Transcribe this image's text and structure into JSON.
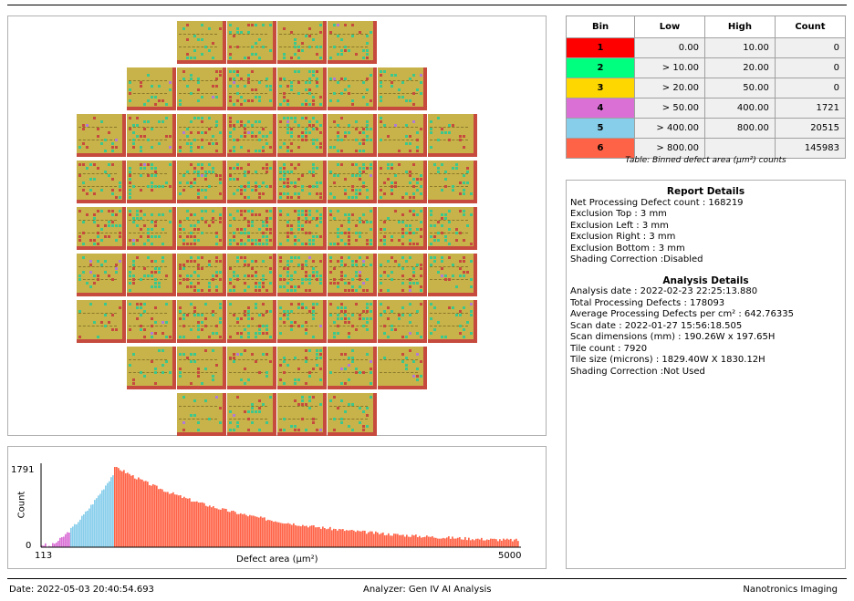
{
  "bin_table": {
    "caption": "Table: Binned defect area (µm²) counts",
    "headers": [
      "Bin",
      "Low",
      "High",
      "Count"
    ],
    "rows": [
      {
        "bin": "1",
        "low": "0.00",
        "high": "10.00",
        "count": "0",
        "color": "#ff0000"
      },
      {
        "bin": "2",
        "low": "> 10.00",
        "high": "20.00",
        "count": "0",
        "color": "#00ff7f"
      },
      {
        "bin": "3",
        "low": "> 20.00",
        "high": "50.00",
        "count": "0",
        "color": "#ffd700"
      },
      {
        "bin": "4",
        "low": "> 50.00",
        "high": "400.00",
        "count": "1721",
        "color": "#da70d6"
      },
      {
        "bin": "5",
        "low": "> 400.00",
        "high": "800.00",
        "count": "20515",
        "color": "#87ceeb"
      },
      {
        "bin": "6",
        "low": "> 800.00",
        "high": "",
        "count": "145983",
        "color": "#ff6347"
      }
    ]
  },
  "report_details": {
    "title": "Report Details",
    "lines": [
      "Net Processing Defect count :  168219",
      "Exclusion Top :  3 mm",
      "Exclusion Left :  3 mm",
      "Exclusion Right :  3 mm",
      "Exclusion Bottom :  3 mm",
      "Shading Correction :Disabled"
    ]
  },
  "analysis_details": {
    "title": "Analysis Details",
    "lines": [
      "Analysis date :  2022-02-23 22:25:13.880",
      "Total Processing Defects :  178093",
      "Average Processing Defects per cm² :  642.76335",
      "Scan date :  2022-01-27 15:56:18.505",
      "Scan dimensions (mm) :  190.26W x 197.65H",
      "Tile count :  7920",
      "Tile size (microns) :  1829.40W X 1830.12H",
      "Shading Correction :Not Used"
    ]
  },
  "histogram": {
    "ylabel": "Count",
    "xlabel": "Defect area (µm²)",
    "y_max_label": "1791",
    "y_min_label": "0",
    "x_min_label": "113",
    "x_max_label": "5000",
    "colors": {
      "bin4": "#da70d6",
      "bin5": "#87ceeb",
      "bin6": "#ff6347"
    }
  },
  "wafer_map": {
    "rows": [
      4,
      6,
      8,
      8,
      8,
      8,
      8,
      6,
      4
    ],
    "colors": {
      "base": "#c8b24a",
      "edge": "#c64a3e",
      "green": "#3cc88c",
      "red": "#c64a3e",
      "purple": "#b07ad8"
    }
  },
  "footer": {
    "date": "Date: 2022-05-03 20:40:54.693",
    "analyzer": "Analyzer: Gen IV AI Analysis",
    "company": "Nanotronics Imaging"
  }
}
